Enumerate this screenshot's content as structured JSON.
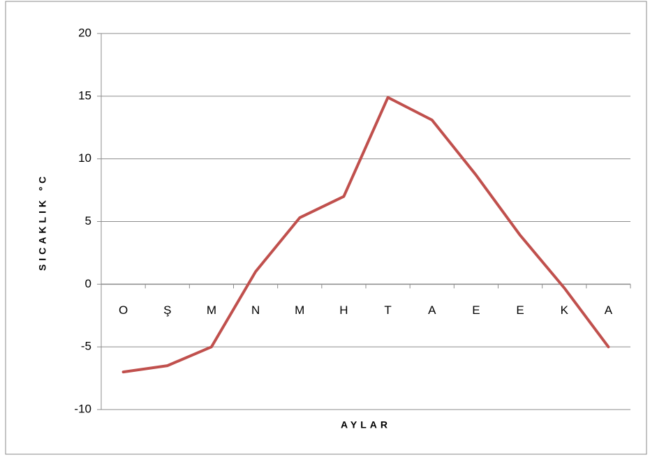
{
  "chart_data": {
    "type": "line",
    "y_label": "SICAKLIK ºC",
    "x_label": "AYLAR",
    "categories": [
      "O",
      "Ş",
      "M",
      "N",
      "M",
      "H",
      "T",
      "A",
      "E",
      "E",
      "K",
      "A"
    ],
    "values": [
      -7,
      -6.5,
      -5,
      1,
      5.3,
      7,
      14.9,
      13.1,
      8.7,
      3.9,
      -0.3,
      -5
    ],
    "color": "#c0504d",
    "ylim": [
      -10,
      20
    ],
    "yticks": [
      -10,
      -5,
      0,
      5,
      10,
      15,
      20
    ],
    "grid": true
  }
}
